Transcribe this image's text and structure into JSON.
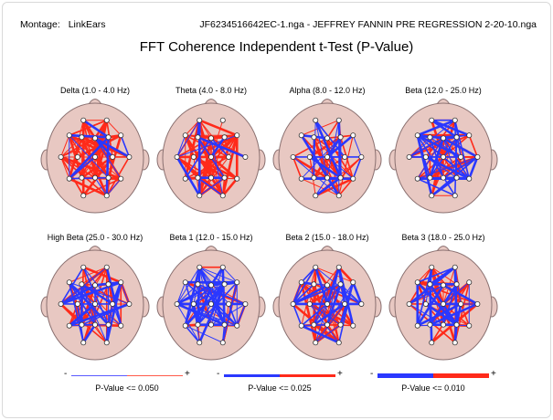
{
  "header": {
    "montage_label": "Montage:",
    "montage_value": "LinkEars",
    "file_title": "JF6234516642EC-1.nga - JEFFREY FANNIN PRE REGRESSION 2-20-10.nga",
    "chart_title": "FFT Coherence Independent t-Test  (P-Value)"
  },
  "colors": {
    "positive": "#ff2a1a",
    "negative": "#2a38ff",
    "head_fill": "#e8c8c2",
    "head_stroke": "#8a7070"
  },
  "bands": [
    {
      "label": "Delta (1.0 - 4.0 Hz)",
      "red": 90,
      "blue": 14
    },
    {
      "label": "Theta (4.0 - 8.0 Hz)",
      "red": 80,
      "blue": 16
    },
    {
      "label": "Alpha (8.0 - 12.0 Hz)",
      "red": 45,
      "blue": 30
    },
    {
      "label": "Beta (12.0 - 25.0 Hz)",
      "red": 50,
      "blue": 55
    },
    {
      "label": "High Beta (25.0 - 30.0 Hz)",
      "red": 55,
      "blue": 40
    },
    {
      "label": "Beta 1 (12.0 - 15.0 Hz)",
      "red": 22,
      "blue": 70
    },
    {
      "label": "Beta 2 (15.0 - 18.0 Hz)",
      "red": 50,
      "blue": 40
    },
    {
      "label": "Beta 3 (18.0 - 25.0 Hz)",
      "red": 50,
      "blue": 40
    }
  ],
  "legend": [
    {
      "minus": "-",
      "plus": "+",
      "caption": "P-Value <= 0.050"
    },
    {
      "minus": "-",
      "plus": "+",
      "caption": "P-Value <= 0.025"
    },
    {
      "minus": "-",
      "plus": "+",
      "caption": "P-Value <= 0.010"
    }
  ]
}
